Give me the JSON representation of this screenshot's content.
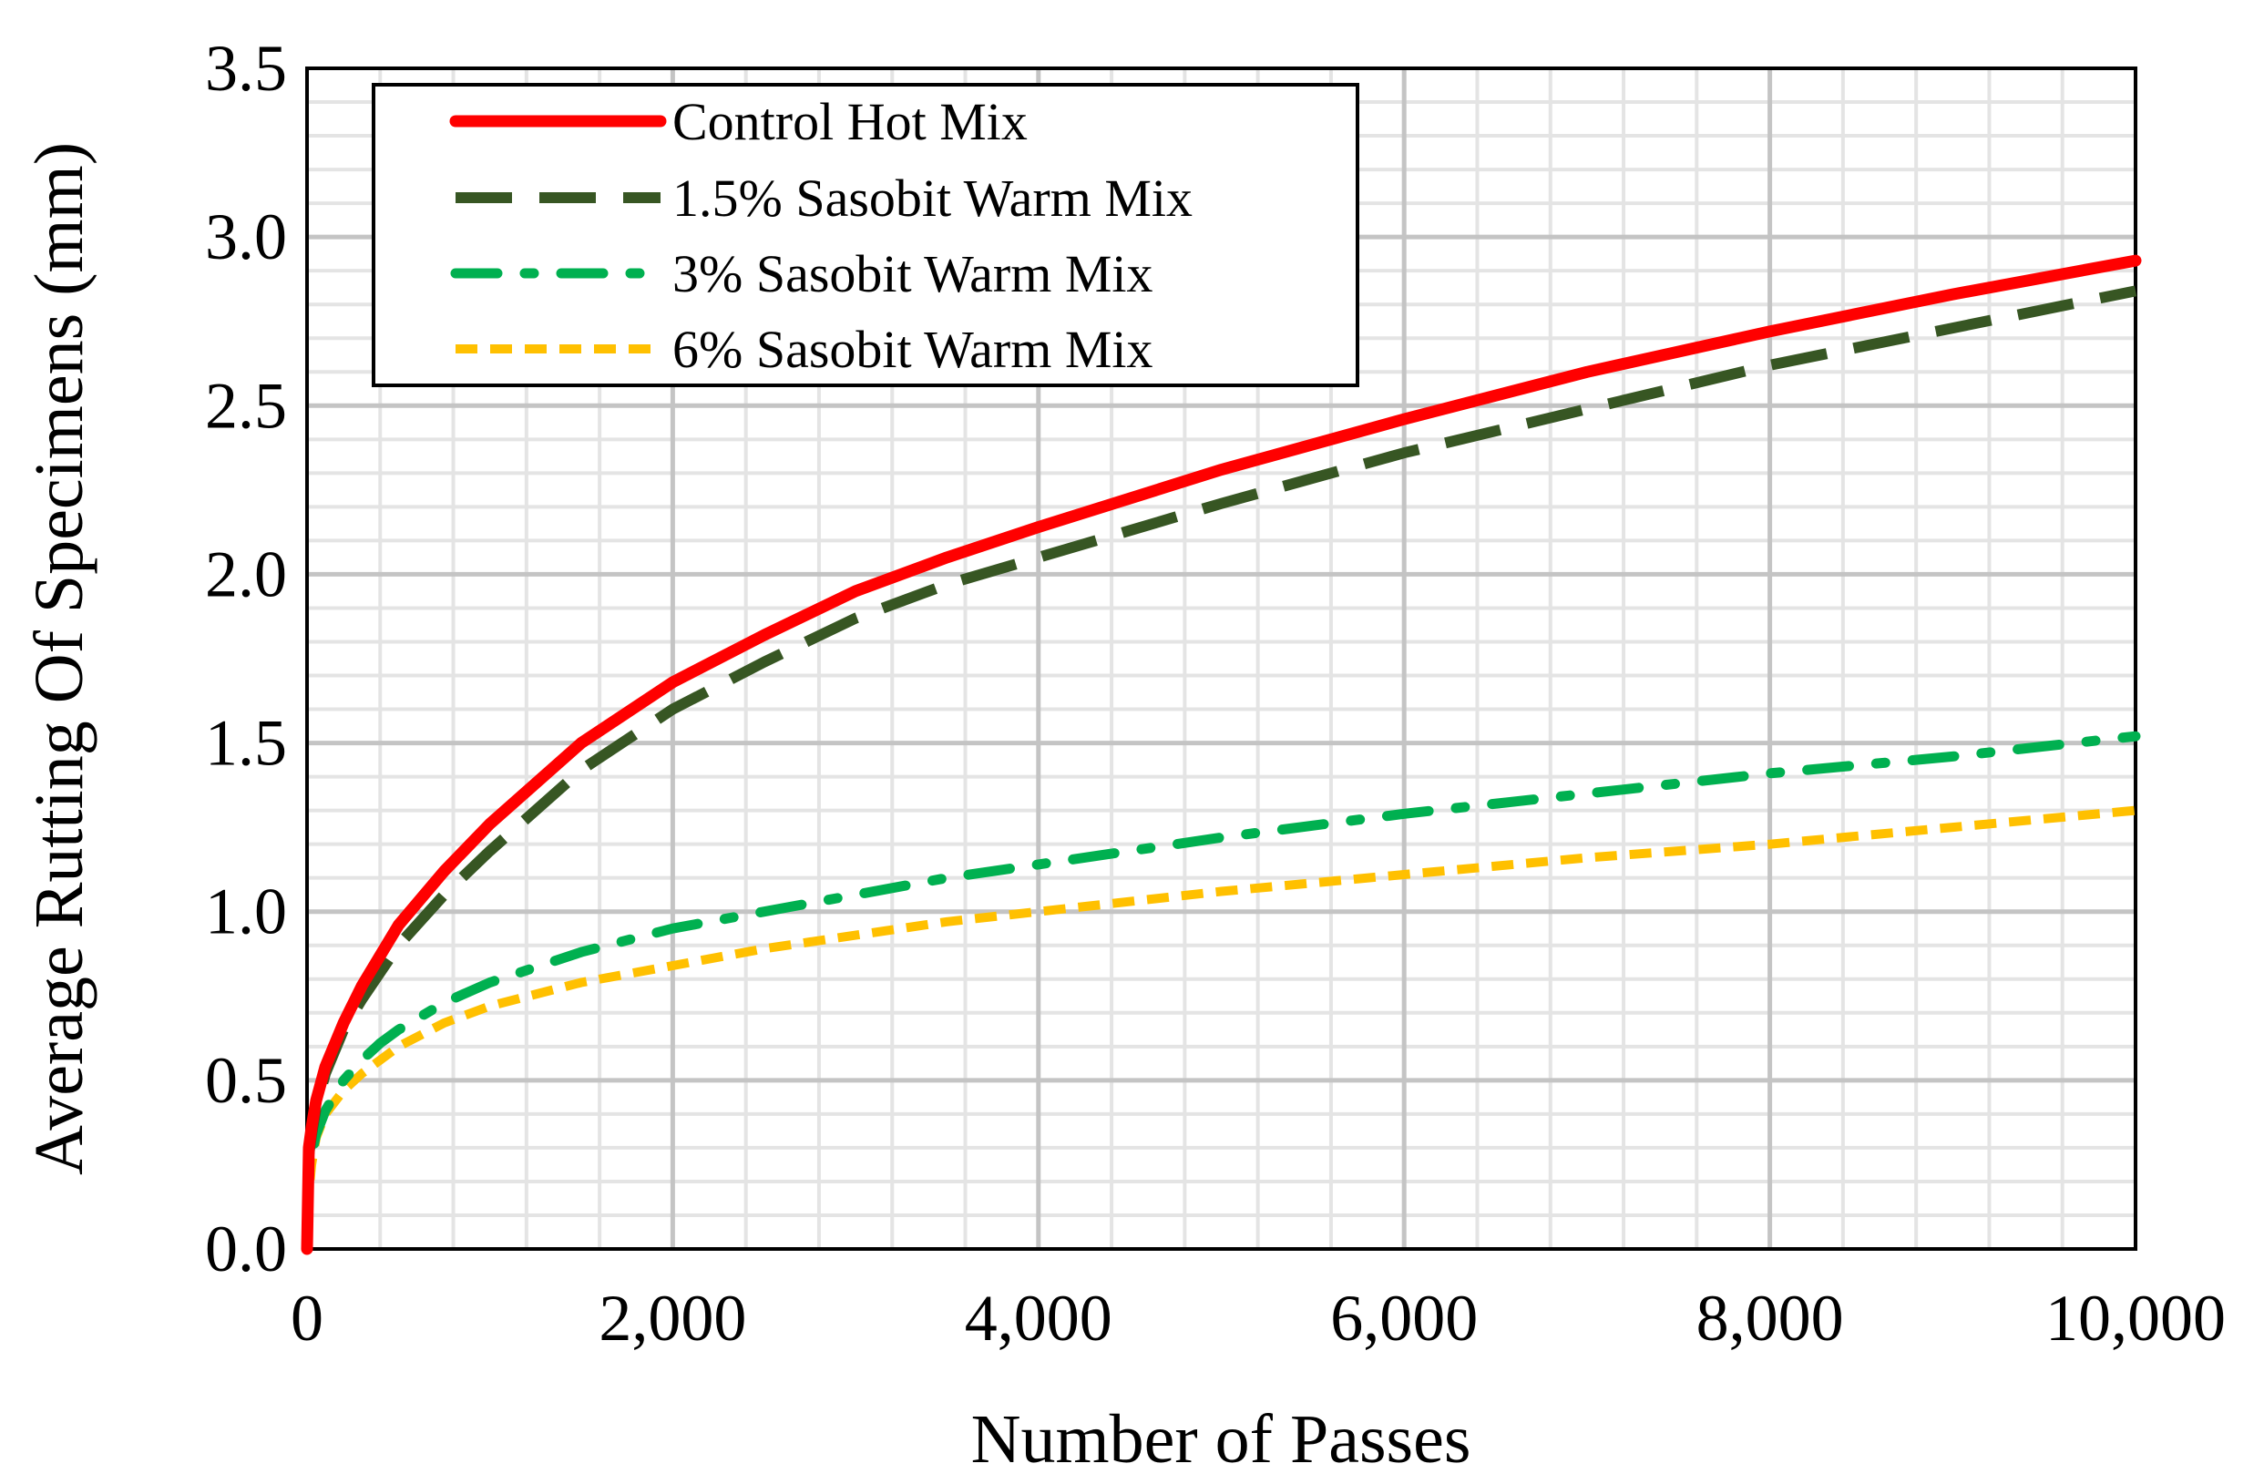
{
  "chart_data": {
    "type": "line",
    "title": "",
    "xlabel": "Number of Passes",
    "ylabel": "Average Rutting Of Specimens (mm)",
    "xlim": [
      0,
      10000
    ],
    "ylim": [
      0,
      3.5
    ],
    "x_ticks": [
      0,
      2000,
      4000,
      6000,
      8000,
      10000
    ],
    "x_tick_labels": [
      "0",
      "2,000",
      "4,000",
      "6,000",
      "8,000",
      "10,000"
    ],
    "y_ticks": [
      0,
      0.5,
      1,
      1.5,
      2,
      2.5,
      3,
      3.5
    ],
    "y_tick_labels": [
      "0.0",
      "0.5",
      "1.0",
      "1.5",
      "2.0",
      "2.5",
      "3.0",
      "3.5"
    ],
    "x_minor_step": 400,
    "y_minor_step": 0.1,
    "grid": true,
    "legend_position": "top-left",
    "x": [
      0,
      10,
      25,
      50,
      100,
      200,
      300,
      400,
      500,
      750,
      1000,
      1500,
      2000,
      2500,
      3000,
      3500,
      4000,
      5000,
      6000,
      7000,
      8000,
      9000,
      10000
    ],
    "series": [
      {
        "name": "Control Hot Mix",
        "color": "#ff0000",
        "style": "solid",
        "values": [
          0,
          0.3,
          0.36,
          0.44,
          0.54,
          0.67,
          0.78,
          0.87,
          0.96,
          1.12,
          1.26,
          1.5,
          1.68,
          1.82,
          1.95,
          2.05,
          2.14,
          2.31,
          2.46,
          2.6,
          2.72,
          2.83,
          2.93
        ]
      },
      {
        "name": "1.5% Sasobit Warm Mix",
        "color": "#375623",
        "style": "long-dash",
        "values": [
          0,
          0.28,
          0.34,
          0.42,
          0.52,
          0.65,
          0.74,
          0.82,
          0.9,
          1.05,
          1.18,
          1.42,
          1.6,
          1.74,
          1.87,
          1.97,
          2.05,
          2.21,
          2.36,
          2.49,
          2.62,
          2.73,
          2.84
        ]
      },
      {
        "name": "3% Sasobit Warm Mix",
        "color": "#00b050",
        "style": "dash-dot",
        "values": [
          0,
          0.22,
          0.28,
          0.34,
          0.41,
          0.5,
          0.56,
          0.61,
          0.65,
          0.73,
          0.79,
          0.88,
          0.95,
          1.0,
          1.05,
          1.1,
          1.14,
          1.22,
          1.29,
          1.35,
          1.41,
          1.46,
          1.52
        ]
      },
      {
        "name": "6% Sasobit Warm Mix",
        "color": "#ffc000",
        "style": "short-dash",
        "values": [
          0,
          0.16,
          0.25,
          0.33,
          0.4,
          0.47,
          0.52,
          0.56,
          0.6,
          0.67,
          0.72,
          0.79,
          0.84,
          0.89,
          0.93,
          0.97,
          1.0,
          1.06,
          1.11,
          1.16,
          1.2,
          1.25,
          1.3
        ]
      }
    ]
  }
}
